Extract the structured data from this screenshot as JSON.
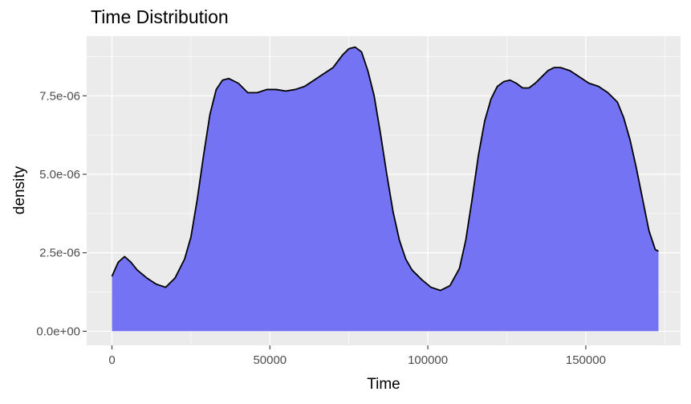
{
  "chart_data": {
    "type": "area",
    "title": "Time Distribution",
    "xlabel": "Time",
    "ylabel": "density",
    "xlim": [
      -8000,
      180000
    ],
    "ylim": [
      -4.5e-07,
      9.4e-06
    ],
    "x_ticks": [
      0,
      50000,
      100000,
      150000
    ],
    "x_tick_labels": [
      "0",
      "50000",
      "100000",
      "150000"
    ],
    "y_ticks": [
      0,
      2.5e-06,
      5e-06,
      7.5e-06
    ],
    "y_tick_labels": [
      "0.0e+00",
      "2.5e-06",
      "5.0e-06",
      "7.5e-06"
    ],
    "grid": true,
    "legend": "none",
    "colors": {
      "fill": "#7373f4",
      "outline": "#000000",
      "panel": "#ebebeb",
      "grid": "#ffffff"
    },
    "series": [
      {
        "x": [
          0,
          2000,
          4000,
          6000,
          8000,
          11000,
          14000,
          17000,
          20000,
          23000,
          25000,
          27000,
          29000,
          31000,
          33000,
          35000,
          37000,
          40000,
          43000,
          46000,
          49000,
          52000,
          55000,
          58000,
          61000,
          64000,
          67000,
          70000,
          73000,
          75000,
          77000,
          79000,
          81000,
          83000,
          85000,
          87000,
          89000,
          91000,
          93000,
          95000,
          98000,
          101000,
          104000,
          107000,
          110000,
          112000,
          114000,
          116000,
          118000,
          120000,
          122000,
          124000,
          126000,
          128000,
          130000,
          132000,
          134000,
          136000,
          138000,
          140000,
          142000,
          145000,
          148000,
          151000,
          154000,
          157000,
          160000,
          162000,
          164000,
          166000,
          168000,
          170000,
          172000,
          173000
        ],
        "y": [
          1.75e-06,
          2.2e-06,
          2.38e-06,
          2.2e-06,
          1.95e-06,
          1.7e-06,
          1.5e-06,
          1.4e-06,
          1.7e-06,
          2.3e-06,
          3e-06,
          4.2e-06,
          5.6e-06,
          6.9e-06,
          7.7e-06,
          8e-06,
          8.05e-06,
          7.9e-06,
          7.6e-06,
          7.6e-06,
          7.7e-06,
          7.7e-06,
          7.65e-06,
          7.7e-06,
          7.8e-06,
          8e-06,
          8.2e-06,
          8.4e-06,
          8.8e-06,
          9e-06,
          9.05e-06,
          8.9e-06,
          8.3e-06,
          7.5e-06,
          6.3e-06,
          5e-06,
          3.8e-06,
          2.9e-06,
          2.3e-06,
          1.95e-06,
          1.65e-06,
          1.4e-06,
          1.3e-06,
          1.45e-06,
          2e-06,
          2.9e-06,
          4.2e-06,
          5.6e-06,
          6.7e-06,
          7.4e-06,
          7.8e-06,
          7.95e-06,
          8e-06,
          7.9e-06,
          7.75e-06,
          7.75e-06,
          7.9e-06,
          8.1e-06,
          8.3e-06,
          8.4e-06,
          8.4e-06,
          8.3e-06,
          8.1e-06,
          7.9e-06,
          7.8e-06,
          7.6e-06,
          7.3e-06,
          6.8e-06,
          6.1e-06,
          5.2e-06,
          4.2e-06,
          3.2e-06,
          2.6e-06,
          2.55e-06
        ]
      }
    ]
  }
}
